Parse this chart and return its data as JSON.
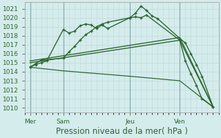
{
  "background_color": "#d4ecec",
  "grid_color": "#b8d8d8",
  "line_color": "#2d6630",
  "title": "Pression niveau de la mer( hPa )",
  "ylim": [
    1009.5,
    1021.7
  ],
  "yticks": [
    1010,
    1011,
    1012,
    1013,
    1014,
    1015,
    1016,
    1017,
    1018,
    1019,
    1020,
    1021
  ],
  "day_labels": [
    "Mer",
    "Sam",
    "Jeu",
    "Ven"
  ],
  "day_positions": [
    0,
    6,
    18,
    27
  ],
  "vline_positions": [
    0,
    6,
    18,
    27
  ],
  "xlim": [
    -1,
    34
  ],
  "line_upper1_x": [
    0,
    1,
    2,
    3,
    6,
    7,
    8,
    9,
    10,
    11,
    12,
    13,
    14,
    18,
    19,
    20,
    21,
    22,
    23,
    27,
    28,
    29,
    30,
    31,
    33
  ],
  "line_upper1_y": [
    1014.5,
    1014.8,
    1015.0,
    1015.2,
    1018.7,
    1018.3,
    1018.5,
    1019.1,
    1019.3,
    1019.2,
    1018.8,
    1019.2,
    1018.8,
    1020.0,
    1020.5,
    1021.3,
    1020.8,
    1020.2,
    1019.9,
    1017.7,
    1017.2,
    1016.0,
    1014.8,
    1013.5,
    1010.1
  ],
  "line_upper2_x": [
    0,
    1,
    2,
    6,
    7,
    8,
    9,
    10,
    11,
    12,
    13,
    14,
    18,
    19,
    20,
    21,
    27,
    28,
    29,
    30,
    31,
    33
  ],
  "line_upper2_y": [
    1014.5,
    1014.9,
    1015.3,
    1015.5,
    1016.2,
    1016.8,
    1017.5,
    1018.1,
    1018.5,
    1019.0,
    1019.3,
    1019.5,
    1020.0,
    1020.1,
    1020.0,
    1020.3,
    1017.5,
    1015.2,
    1013.8,
    1012.5,
    1011.0,
    1010.1
  ],
  "line_trend1_x": [
    0,
    27,
    33
  ],
  "line_trend1_y": [
    1015.0,
    1017.5,
    1010.1
  ],
  "line_trend2_x": [
    0,
    27,
    33
  ],
  "line_trend2_y": [
    1015.2,
    1017.8,
    1010.1
  ],
  "line_low_x": [
    0,
    6,
    18,
    27,
    33
  ],
  "line_low_y": [
    1014.5,
    1014.1,
    1013.5,
    1013.0,
    1010.1
  ],
  "xlabel_fontsize": 8.5,
  "tick_fontsize": 6.5
}
